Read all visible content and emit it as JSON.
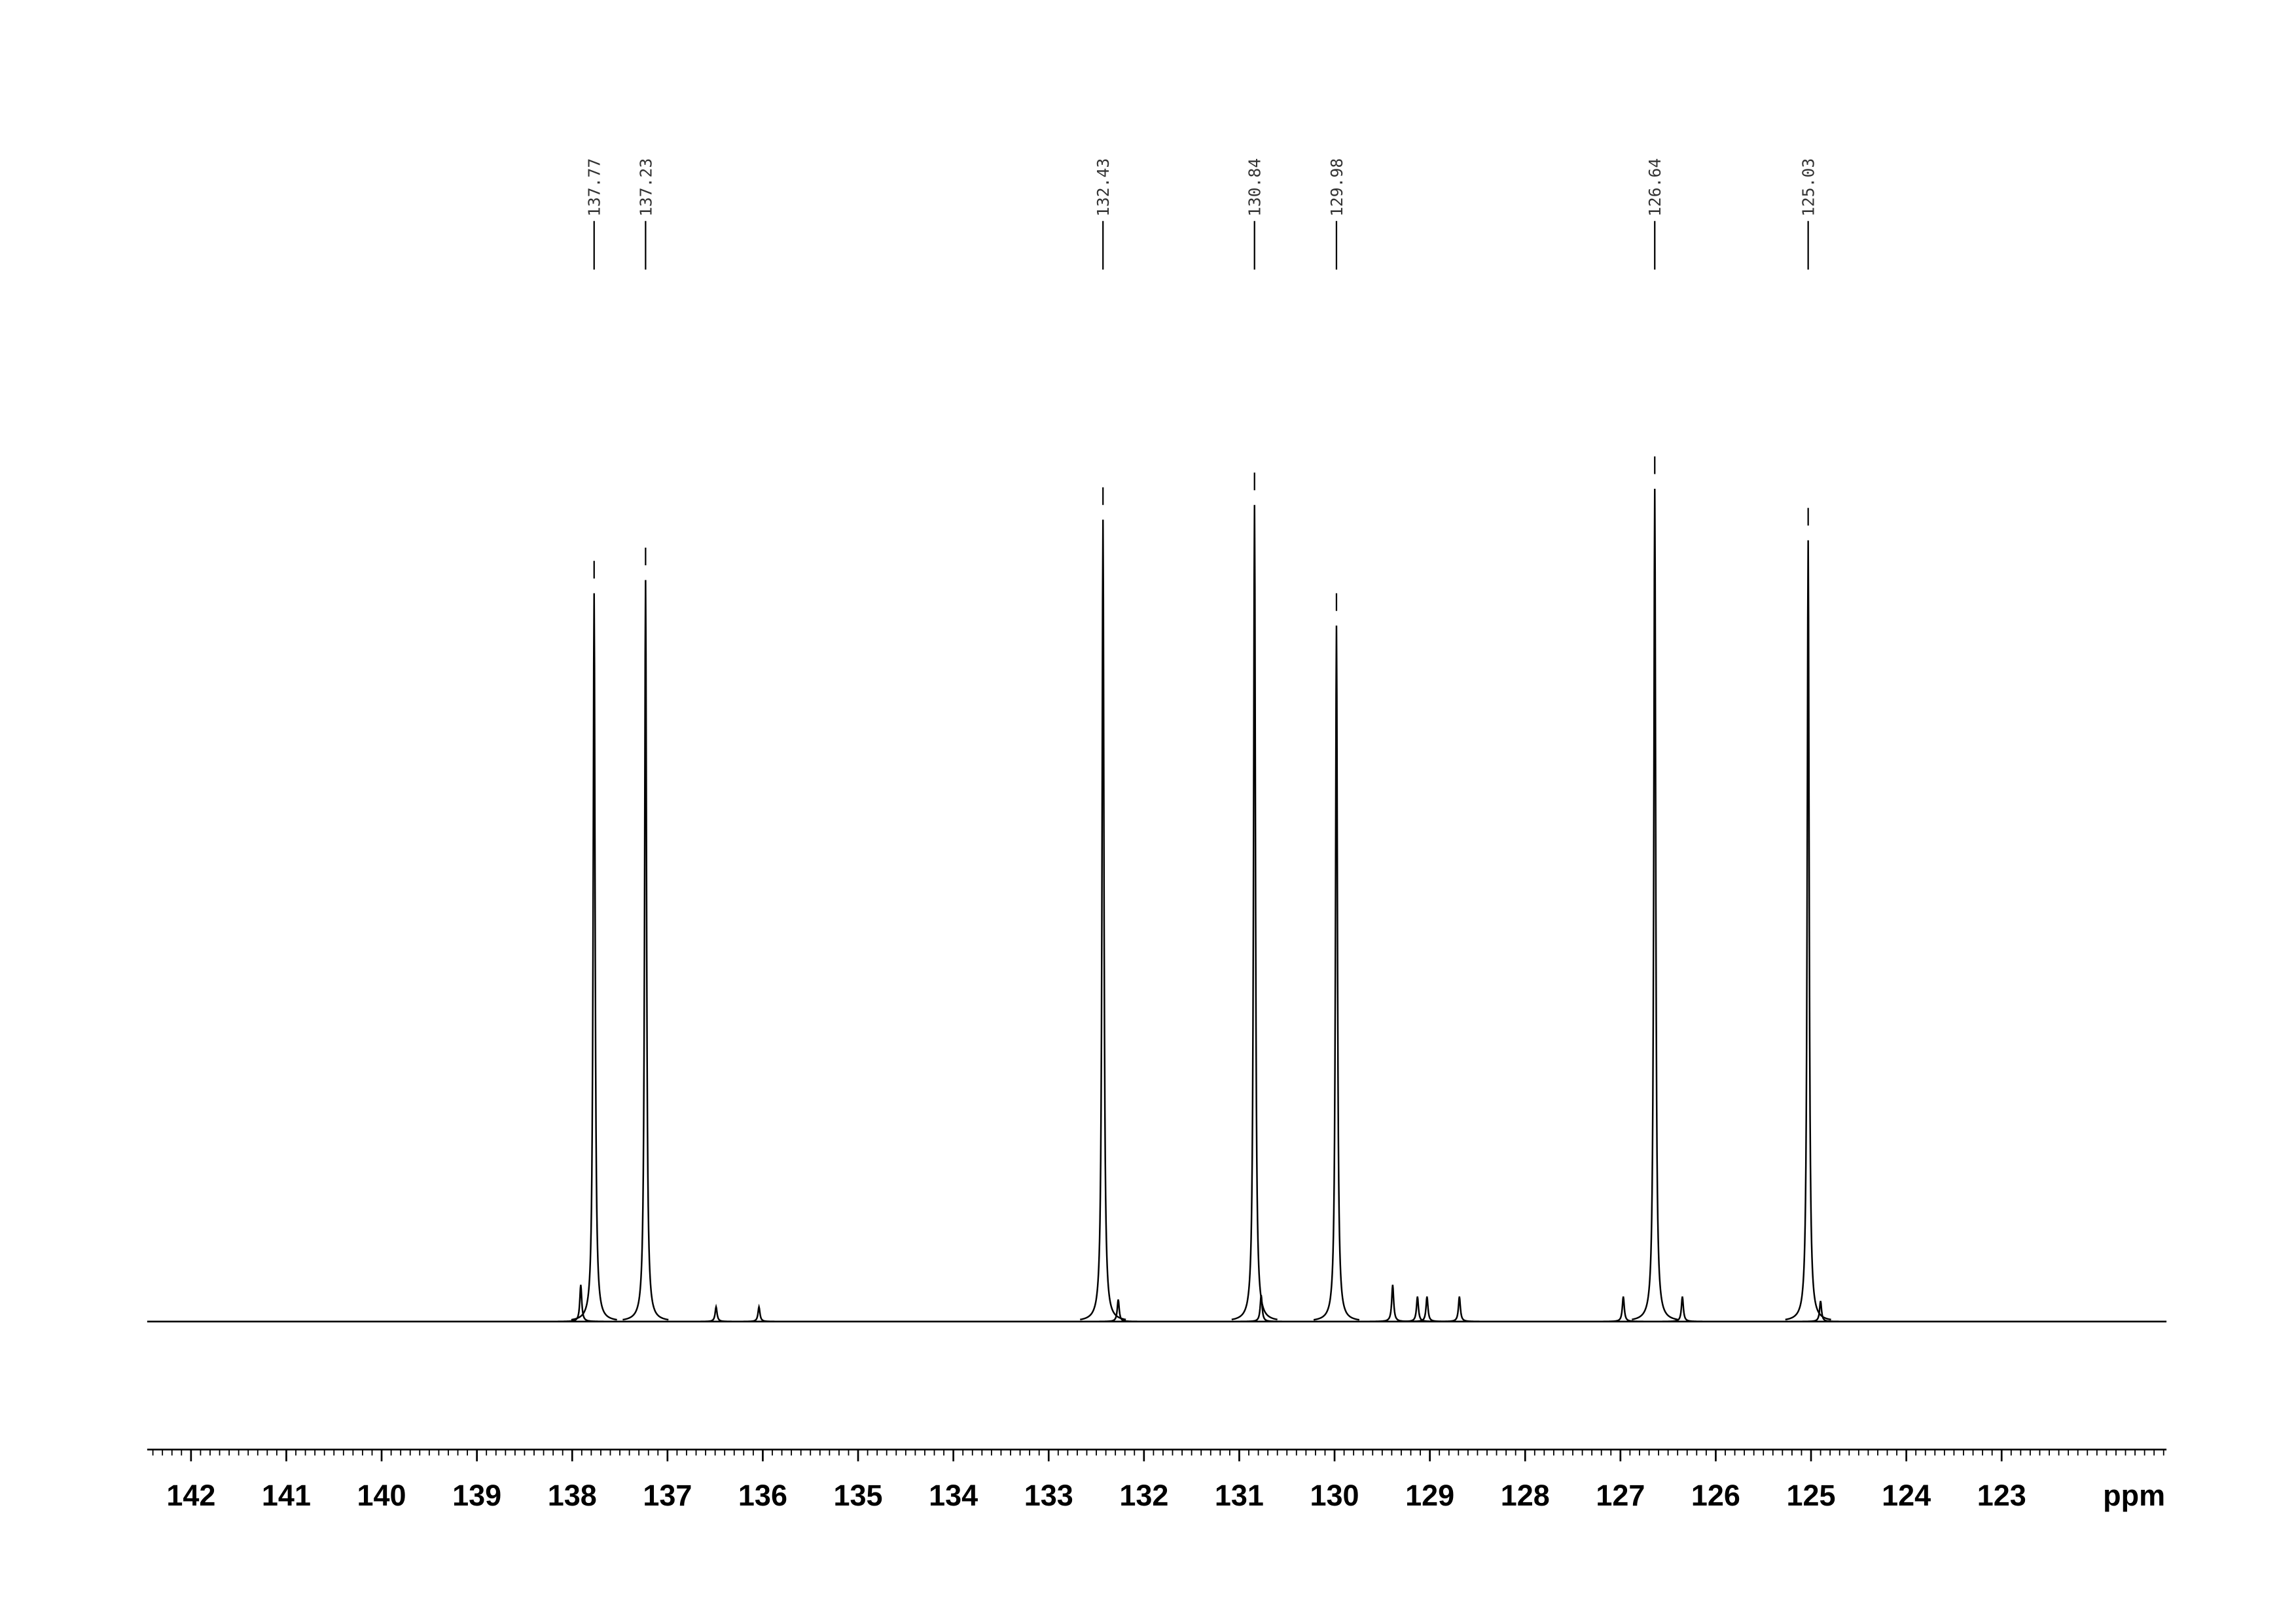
{
  "chart_data": {
    "type": "spectrum",
    "x_label": "ppm",
    "xlim": [
      142.46,
      121.27
    ],
    "xticks": [
      142,
      141,
      140,
      139,
      138,
      137,
      136,
      135,
      134,
      133,
      132,
      131,
      130,
      129,
      128,
      127,
      126,
      125,
      124,
      123
    ],
    "ylim": [
      -100,
      600
    ],
    "color": "#000000",
    "peaks": {
      "x": [
        137.77,
        137.23,
        132.43,
        130.84,
        129.98,
        126.64,
        125.03,
        137.91,
        136.49,
        136.04,
        132.27,
        130.77,
        129.39,
        129.13,
        129.03,
        128.69,
        126.97,
        126.35,
        124.9
      ],
      "values": [
        495,
        504,
        545,
        555,
        473,
        566,
        531,
        25,
        10,
        10,
        15,
        18,
        25,
        17,
        17,
        17,
        17,
        17,
        14
      ]
    },
    "peak_labels": [
      137.77,
      137.23,
      132.43,
      130.84,
      129.98,
      126.64,
      125.03
    ]
  }
}
